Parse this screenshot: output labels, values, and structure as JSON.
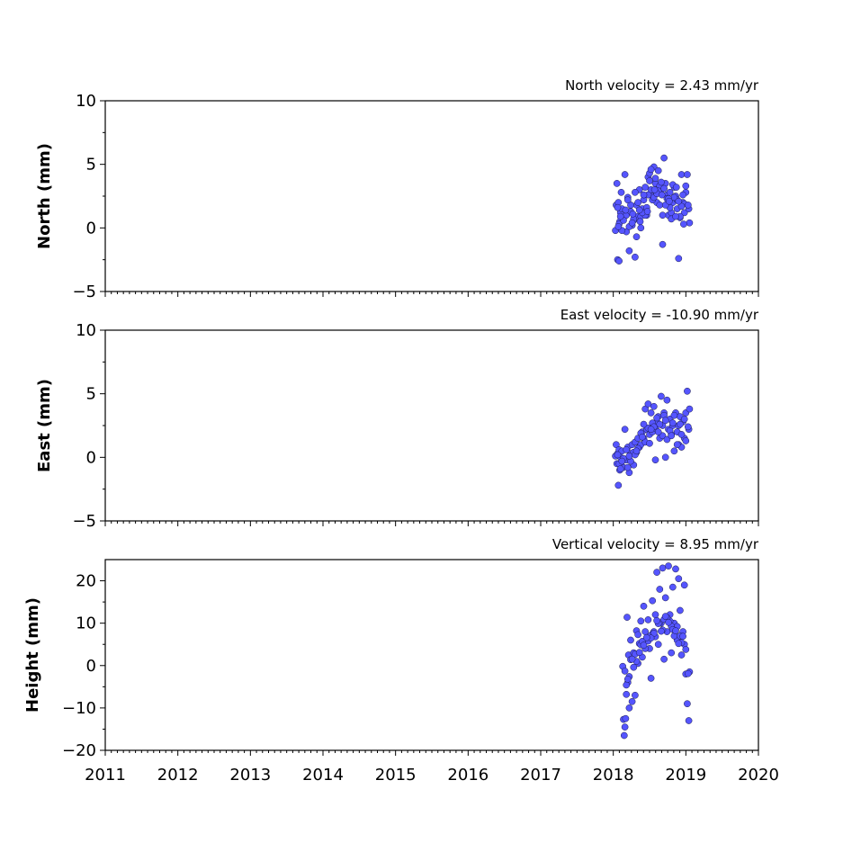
{
  "chart_data": [
    {
      "type": "scatter",
      "ylabel": "North (mm)",
      "annotation": "North velocity = 2.43 mm/yr",
      "xlim": [
        2011,
        2020
      ],
      "ylim": [
        -5,
        10
      ],
      "yticks": [
        -5,
        0,
        5,
        10
      ],
      "ytick_labels": [
        "−5",
        "0",
        "5",
        "10"
      ],
      "point_color": "#5555ff",
      "series": [
        {
          "x": [
            2018.03,
            2018.04,
            2018.05,
            2018.06,
            2018.07,
            2018.08,
            2018.09,
            2018.1,
            2018.11,
            2018.12,
            2018.14,
            2018.16,
            2018.18,
            2018.2,
            2018.22,
            2018.24,
            2018.26,
            2018.28,
            2018.3,
            2018.32,
            2018.34,
            2018.36,
            2018.38,
            2018.4,
            2018.42,
            2018.44,
            2018.46,
            2018.48,
            2018.5,
            2018.52,
            2018.54,
            2018.56,
            2018.58,
            2018.6,
            2018.62,
            2018.64,
            2018.66,
            2018.68,
            2018.7,
            2018.72,
            2018.74,
            2018.76,
            2018.78,
            2018.8,
            2018.82,
            2018.84,
            2018.86,
            2018.88,
            2018.9,
            2018.92,
            2018.94,
            2018.96,
            2018.98,
            2019.0,
            2019.02,
            2019.04,
            2019.05,
            2018.08,
            2018.18,
            2018.28,
            2018.38,
            2018.48,
            2018.58,
            2018.68,
            2018.78,
            2018.88,
            2018.98,
            2018.14,
            2018.24,
            2018.34,
            2018.44,
            2018.54,
            2018.64,
            2018.74,
            2018.84,
            2018.94,
            2018.06,
            2018.1,
            2018.22,
            2018.3,
            2018.4,
            2018.5,
            2018.56,
            2018.62,
            2018.7,
            2018.8,
            2018.9,
            2019.0,
            2018.12,
            2018.2,
            2018.32,
            2018.42,
            2018.52,
            2018.6,
            2018.72,
            2018.82,
            2018.92,
            2019.03,
            2018.26,
            2018.36,
            2018.46,
            2018.66,
            2018.76,
            2018.86,
            2018.96,
            2018.07,
            2018.17,
            2018.27,
            2018.37,
            2018.47,
            2018.57,
            2018.67,
            2018.77,
            2018.87,
            2018.97
          ],
          "y": [
            -0.2,
            1.8,
            3.5,
            -2.5,
            2.0,
            -2.6,
            0.5,
            1.2,
            2.8,
            1.5,
            0.8,
            4.2,
            1.0,
            2.4,
            -1.8,
            1.3,
            0.2,
            0.6,
            -2.3,
            1.8,
            0.9,
            3.0,
            0.0,
            1.5,
            2.2,
            3.2,
            1.0,
            4.0,
            4.3,
            3.0,
            2.5,
            4.8,
            3.5,
            2.0,
            4.5,
            1.8,
            3.0,
            -1.3,
            5.5,
            3.5,
            2.6,
            1.0,
            2.8,
            1.2,
            2.0,
            3.2,
            2.5,
            1.5,
            -2.4,
            0.8,
            4.2,
            2.0,
            1.2,
            2.8,
            4.2,
            1.5,
            0.4,
            0.3,
            -0.3,
            0.7,
            0.9,
            2.6,
            3.9,
            1.0,
            1.6,
            2.2,
            1.9,
            0.6,
            1.8,
            2.0,
            1.0,
            2.2,
            3.3,
            2.3,
            2.4,
            1.7,
            1.6,
            0.9,
            0.1,
            2.8,
            1.2,
            3.7,
            2.4,
            2.9,
            3.1,
            0.7,
            2.1,
            3.3,
            -0.2,
            2.2,
            -0.7,
            2.6,
            4.6,
            2.7,
            1.8,
            3.4,
            0.9,
            1.8,
            0.4,
            1.4,
            1.6,
            3.6,
            2.3,
            0.9,
            2.6,
            0.1,
            1.4,
            1.1,
            0.5,
            1.3,
            3.0,
            2.6,
            2.1,
            3.2,
            0.3
          ]
        }
      ]
    },
    {
      "type": "scatter",
      "ylabel": "East (mm)",
      "annotation": "East velocity = -10.90 mm/yr",
      "xlim": [
        2011,
        2020
      ],
      "ylim": [
        -5,
        10
      ],
      "yticks": [
        -5,
        0,
        5,
        10
      ],
      "ytick_labels": [
        "−5",
        "0",
        "5",
        "10"
      ],
      "point_color": "#5555ff",
      "series": [
        {
          "x": [
            2018.03,
            2018.04,
            2018.05,
            2018.06,
            2018.07,
            2018.08,
            2018.09,
            2018.1,
            2018.11,
            2018.12,
            2018.14,
            2018.16,
            2018.18,
            2018.2,
            2018.22,
            2018.24,
            2018.26,
            2018.28,
            2018.3,
            2018.32,
            2018.34,
            2018.36,
            2018.38,
            2018.4,
            2018.42,
            2018.44,
            2018.46,
            2018.48,
            2018.5,
            2018.52,
            2018.54,
            2018.56,
            2018.58,
            2018.6,
            2018.62,
            2018.64,
            2018.66,
            2018.68,
            2018.7,
            2018.72,
            2018.74,
            2018.76,
            2018.78,
            2018.8,
            2018.82,
            2018.84,
            2018.86,
            2018.88,
            2018.9,
            2018.92,
            2018.94,
            2018.96,
            2018.98,
            2019.0,
            2019.02,
            2019.04,
            2019.05,
            2018.08,
            2018.18,
            2018.28,
            2018.38,
            2018.48,
            2018.58,
            2018.68,
            2018.78,
            2018.88,
            2018.98,
            2018.14,
            2018.24,
            2018.34,
            2018.44,
            2018.54,
            2018.64,
            2018.74,
            2018.84,
            2018.94,
            2018.06,
            2018.1,
            2018.22,
            2018.3,
            2018.4,
            2018.5,
            2018.56,
            2018.62,
            2018.7,
            2018.8,
            2018.9,
            2019.0,
            2018.12,
            2018.2,
            2018.32,
            2018.42,
            2018.52,
            2018.6,
            2018.72,
            2018.82,
            2018.92,
            2019.03
          ],
          "y": [
            0.1,
            1.0,
            -0.5,
            0.3,
            -2.2,
            0.6,
            -1.0,
            0.0,
            -0.4,
            0.5,
            -0.8,
            2.2,
            -0.2,
            0.8,
            -1.2,
            0.3,
            1.0,
            -0.6,
            1.2,
            0.4,
            1.5,
            0.8,
            1.0,
            2.0,
            1.5,
            3.8,
            2.2,
            4.2,
            1.8,
            3.5,
            2.0,
            4.0,
            -0.2,
            2.8,
            3.2,
            1.5,
            4.8,
            2.5,
            3.5,
            0.0,
            4.5,
            2.2,
            3.0,
            1.8,
            2.5,
            0.5,
            3.5,
            2.0,
            1.0,
            3.2,
            0.8,
            2.8,
            1.5,
            3.5,
            5.2,
            2.2,
            3.8,
            -0.5,
            0.6,
            0.4,
            1.9,
            2.3,
            2.3,
            1.7,
            2.1,
            1.0,
            3.0,
            -0.1,
            -0.3,
            0.7,
            1.2,
            2.7,
            2.6,
            1.4,
            3.3,
            1.8,
            0.2,
            -0.9,
            0.1,
            0.2,
            1.6,
            1.1,
            2.4,
            2.0,
            3.3,
            1.7,
            2.5,
            1.3,
            -0.3,
            -0.8,
            0.5,
            2.6,
            2.2,
            3.1,
            2.9,
            2.7,
            2.6,
            2.4
          ]
        }
      ]
    },
    {
      "type": "scatter",
      "ylabel": "Height (mm)",
      "annotation": "Vertical velocity = 8.95 mm/yr",
      "xlim": [
        2011,
        2020
      ],
      "ylim": [
        -20,
        25
      ],
      "yticks": [
        -20,
        -10,
        0,
        10,
        20
      ],
      "ytick_labels": [
        "−20",
        "−10",
        "0",
        "10",
        "20"
      ],
      "xticks": [
        2011,
        2012,
        2013,
        2014,
        2015,
        2016,
        2017,
        2018,
        2019,
        2020
      ],
      "xtick_labels": [
        "2011",
        "2012",
        "2013",
        "2014",
        "2015",
        "2016",
        "2017",
        "2018",
        "2019",
        "2020"
      ],
      "point_color": "#5555ff",
      "series": [
        {
          "x": [
            2018.13,
            2018.14,
            2018.15,
            2018.16,
            2018.17,
            2018.18,
            2018.19,
            2018.2,
            2018.21,
            2018.22,
            2018.24,
            2018.26,
            2018.28,
            2018.3,
            2018.32,
            2018.34,
            2018.36,
            2018.38,
            2018.4,
            2018.42,
            2018.44,
            2018.46,
            2018.48,
            2018.5,
            2018.52,
            2018.54,
            2018.56,
            2018.58,
            2018.6,
            2018.62,
            2018.64,
            2018.66,
            2018.68,
            2018.7,
            2018.72,
            2018.74,
            2018.76,
            2018.78,
            2018.8,
            2018.82,
            2018.84,
            2018.86,
            2018.88,
            2018.9,
            2018.92,
            2018.94,
            2018.96,
            2018.98,
            2019.0,
            2019.02,
            2019.04,
            2019.05,
            2018.18,
            2018.28,
            2018.38,
            2018.48,
            2018.58,
            2018.68,
            2018.78,
            2018.88,
            2018.98,
            2018.24,
            2018.34,
            2018.44,
            2018.54,
            2018.64,
            2018.74,
            2018.84,
            2018.94,
            2018.16,
            2018.22,
            2018.3,
            2018.4,
            2018.5,
            2018.56,
            2018.62,
            2018.7,
            2018.8,
            2018.9,
            2019.0,
            2018.2,
            2018.32,
            2018.42,
            2018.52,
            2018.6,
            2018.72,
            2018.82,
            2018.92,
            2019.03,
            2018.26,
            2018.36,
            2018.46,
            2018.66,
            2018.76,
            2018.86,
            2018.96
          ],
          "y": [
            -0.2,
            -12.7,
            -16.5,
            -14.5,
            -12.5,
            -6.8,
            11.4,
            -4.0,
            2.5,
            -10.0,
            6.0,
            -8.5,
            3.0,
            -7.0,
            8.2,
            0.5,
            5.2,
            10.5,
            2.0,
            14.0,
            8.0,
            6.5,
            10.8,
            4.0,
            -3.0,
            15.3,
            8.0,
            12.0,
            22.0,
            5.0,
            18.0,
            10.0,
            23.0,
            1.5,
            16.0,
            8.0,
            23.5,
            12.0,
            3.0,
            18.5,
            10.0,
            22.8,
            6.0,
            20.5,
            13.0,
            2.5,
            8.0,
            19.0,
            -2.0,
            -9.0,
            -13.0,
            -1.5,
            -4.6,
            -0.4,
            4.9,
            5.8,
            6.8,
            8.4,
            10.5,
            9.2,
            5.0,
            1.4,
            7.3,
            4.0,
            7.5,
            10.1,
            11.3,
            7.0,
            5.4,
            -1.3,
            -2.6,
            2.7,
            5.7,
            6.9,
            7.6,
            9.9,
            10.9,
            9.3,
            5.2,
            3.8,
            -3.2,
            1.0,
            4.8,
            6.5,
            10.6,
            11.6,
            8.5,
            7.0,
            -1.9,
            1.5,
            3.1,
            6.6,
            8.1,
            10.2,
            8.2,
            6.9
          ]
        }
      ]
    }
  ]
}
